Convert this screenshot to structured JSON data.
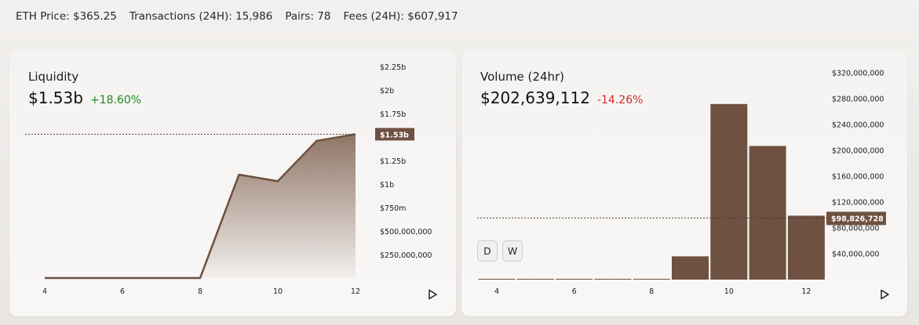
{
  "stats": {
    "eth_price": "ETH Price: $365.25",
    "transactions": "Transactions (24H): 15,986",
    "pairs": "Pairs: 78",
    "fees": "Fees (24H): $607,917"
  },
  "liquidity": {
    "title": "Liquidity",
    "value": "$1.53b",
    "change": "+18.60%",
    "current_tag": "$1.53b",
    "play_icon": "play-icon"
  },
  "volume": {
    "title": "Volume (24hr)",
    "value": "$202,639,112",
    "change": "-14.26%",
    "current_tag": "$98,826,728",
    "range_d": "D",
    "range_w": "W",
    "play_icon": "play-icon"
  },
  "colors": {
    "accent": "#6e5140",
    "positive": "#1f8a1f",
    "negative": "#d42a2a"
  },
  "chart_data": [
    {
      "type": "area",
      "x": [
        4,
        5,
        6,
        7,
        8,
        9,
        10,
        11,
        12
      ],
      "series": [
        {
          "values": [
            0,
            0,
            0,
            0,
            0,
            1.1,
            1.03,
            1.46,
            1.53
          ]
        }
      ],
      "xticks": [
        "4",
        "6",
        "8",
        "10",
        "12"
      ],
      "yticks": [
        "$250,000,000",
        "$500,000,000",
        "$750m",
        "$1b",
        "$1.25b",
        "$1.5b",
        "$1.75b",
        "$2b",
        "$2.25b"
      ],
      "ylim": [
        0,
        2.25
      ],
      "ylabel_unit": "billions USD",
      "current_value_label": "$1.53b"
    },
    {
      "type": "bar",
      "x": [
        4,
        5,
        6,
        7,
        8,
        9,
        10,
        11,
        12
      ],
      "series": [
        {
          "values": [
            0,
            0,
            0,
            0,
            0,
            36000000,
            272000000,
            207000000,
            99000000
          ]
        }
      ],
      "xticks": [
        "4",
        "6",
        "8",
        "10",
        "12"
      ],
      "yticks": [
        "$40,000,000",
        "$80,000,000",
        "$120,000,000",
        "$160,000,000",
        "$200,000,000",
        "$240,000,000",
        "$280,000,000",
        "$320,000,000"
      ],
      "ylim": [
        0,
        330000000
      ],
      "current_value_label": "$98,826,728"
    }
  ]
}
